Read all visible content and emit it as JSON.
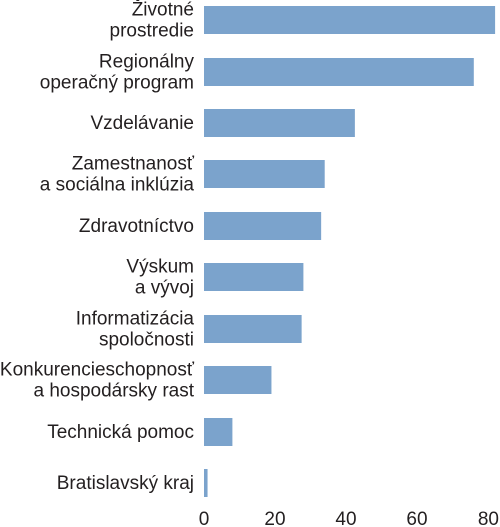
{
  "chart_data": {
    "type": "bar",
    "orientation": "horizontal",
    "title": "",
    "xlabel": "",
    "ylabel": "",
    "categories": [
      [
        "Životné",
        "prostredie"
      ],
      [
        "Regionálny",
        "operačný program"
      ],
      [
        "Vzdelávanie"
      ],
      [
        "Zamestnanosť",
        "a sociálna inklúzia"
      ],
      [
        "Zdravotníctvo"
      ],
      [
        "Výskum",
        "a vývoj"
      ],
      [
        "Informatizácia",
        "spoločnosti"
      ],
      [
        "Konkurencieschopnosť",
        "a hospodársky rast"
      ],
      [
        "Technická pomoc"
      ],
      [
        "Bratislavský kraj"
      ]
    ],
    "values": [
      82,
      76,
      42.5,
      34,
      33,
      28,
      27.5,
      19,
      8,
      1
    ],
    "xlim": [
      0,
      80
    ],
    "xticks": [
      "0",
      "20",
      "40",
      "60",
      "80"
    ],
    "grid": false,
    "bar_color": "#7ba3cc",
    "text_color": "#231f20"
  }
}
